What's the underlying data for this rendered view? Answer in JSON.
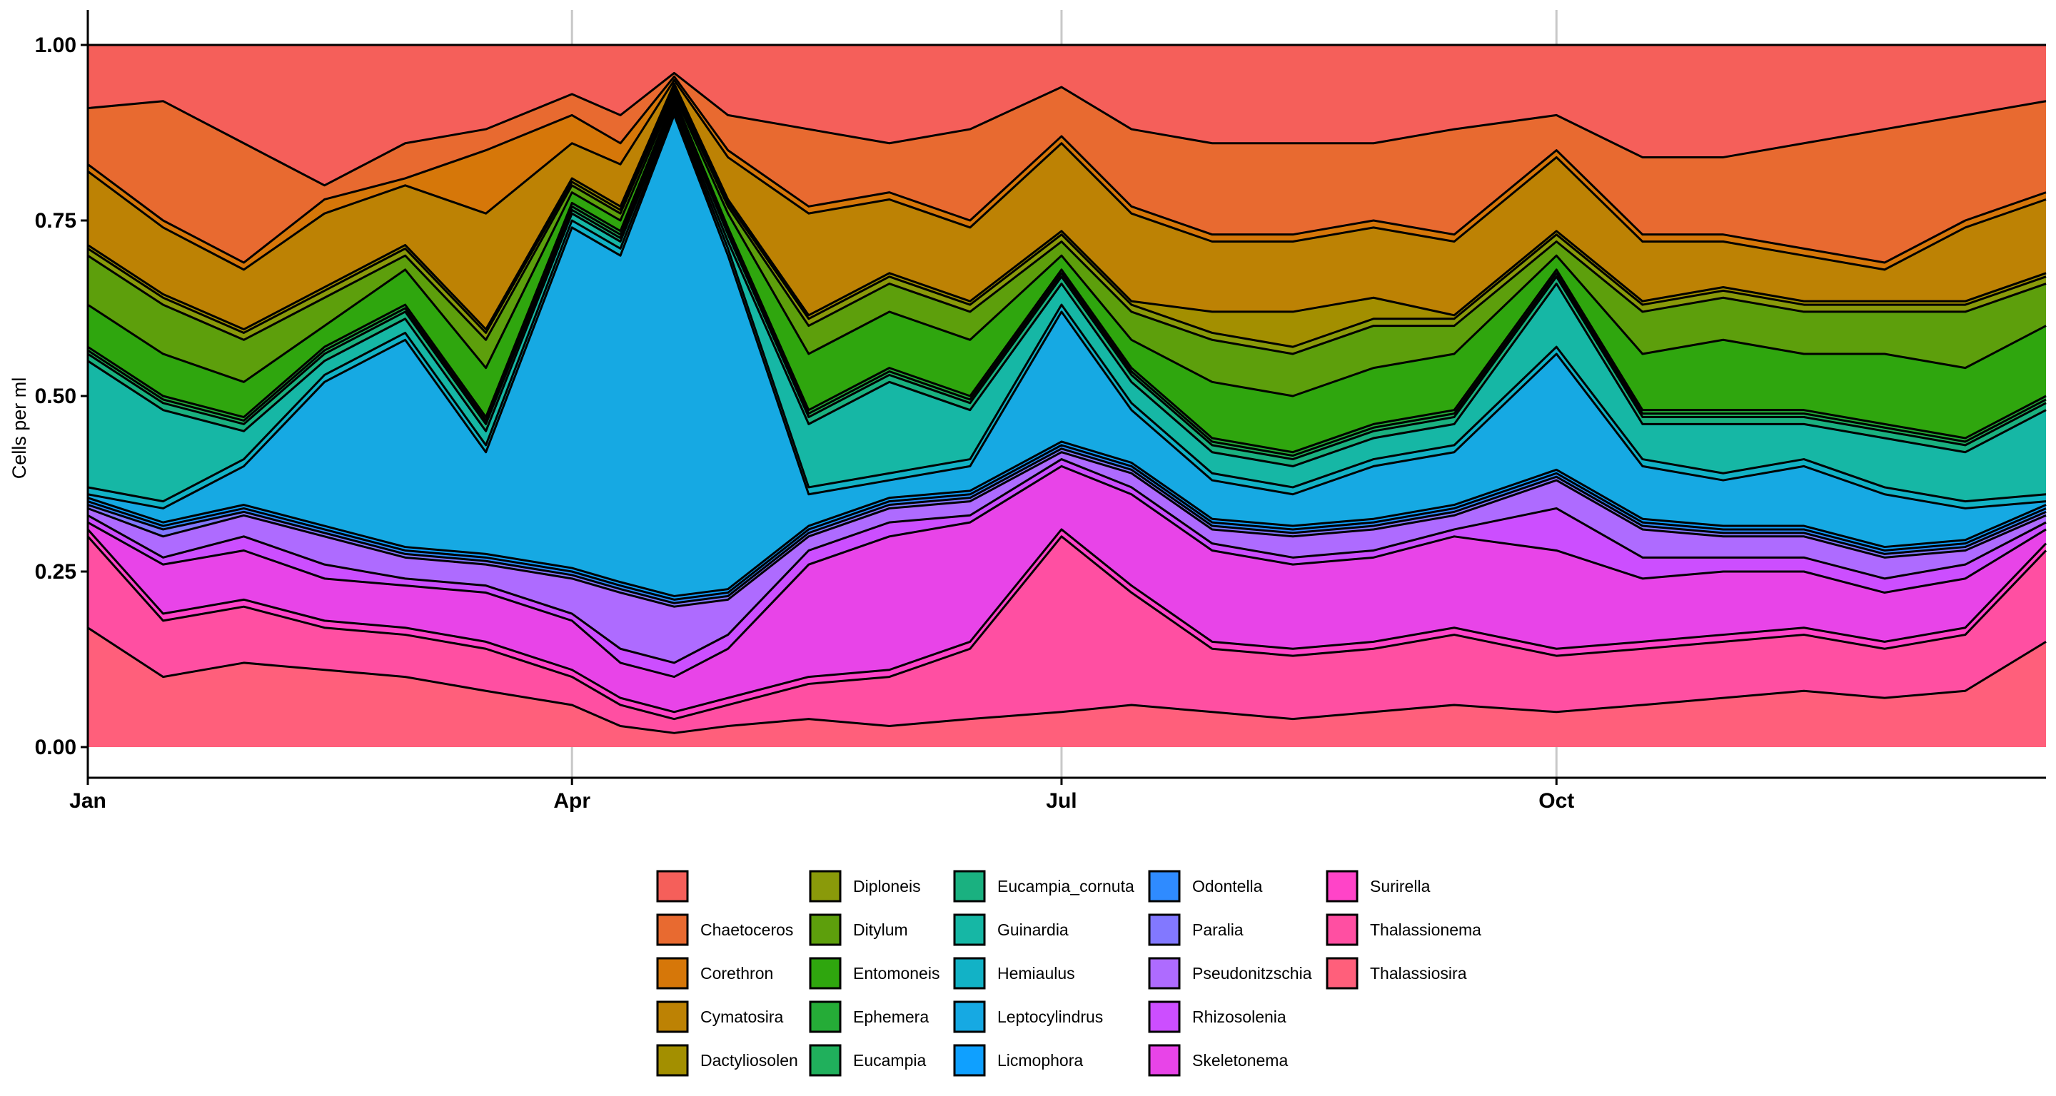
{
  "chart_data": {
    "type": "area",
    "stacked": "fill",
    "title": "",
    "xlabel": "",
    "ylabel": "Cells per ml",
    "ylim": [
      0,
      1
    ],
    "yticks": [
      "0.00",
      "0.25",
      "0.50",
      "0.75",
      "1.00"
    ],
    "x_range_days": [
      1,
      365
    ],
    "xticks": [
      {
        "label": "Jan",
        "day": 1
      },
      {
        "label": "Apr",
        "day": 91
      },
      {
        "label": "Jul",
        "day": 182
      },
      {
        "label": "Oct",
        "day": 274
      }
    ],
    "grid": "vertical-major",
    "legend_position": "bottom",
    "cumulative_boundaries_note": "upper edge of each stacked layer (cumulative proportion), bottom layer first",
    "x_days": [
      1,
      15,
      30,
      45,
      60,
      75,
      91,
      100,
      110,
      120,
      135,
      150,
      165,
      182,
      195,
      210,
      225,
      240,
      255,
      274,
      290,
      305,
      320,
      335,
      350,
      365
    ],
    "series": [
      {
        "name": "Thalassiosira",
        "color": "#FF5F7B",
        "cum": [
          0.17,
          0.1,
          0.12,
          0.11,
          0.1,
          0.08,
          0.06,
          0.03,
          0.02,
          0.03,
          0.04,
          0.03,
          0.04,
          0.05,
          0.06,
          0.05,
          0.04,
          0.05,
          0.06,
          0.05,
          0.06,
          0.07,
          0.08,
          0.07,
          0.08,
          0.15
        ]
      },
      {
        "name": "Thalassionema",
        "color": "#FF4FA2",
        "cum": [
          0.3,
          0.18,
          0.2,
          0.17,
          0.16,
          0.14,
          0.1,
          0.06,
          0.04,
          0.06,
          0.09,
          0.1,
          0.14,
          0.3,
          0.22,
          0.14,
          0.13,
          0.14,
          0.16,
          0.13,
          0.14,
          0.15,
          0.16,
          0.14,
          0.16,
          0.28
        ]
      },
      {
        "name": "Surirella",
        "color": "#FF44C8",
        "cum": [
          0.31,
          0.19,
          0.21,
          0.18,
          0.17,
          0.15,
          0.11,
          0.07,
          0.05,
          0.07,
          0.1,
          0.11,
          0.15,
          0.31,
          0.23,
          0.15,
          0.14,
          0.15,
          0.17,
          0.14,
          0.15,
          0.16,
          0.17,
          0.15,
          0.17,
          0.29
        ]
      },
      {
        "name": "Skeletonema",
        "color": "#E844E8",
        "cum": [
          0.32,
          0.26,
          0.28,
          0.24,
          0.23,
          0.22,
          0.18,
          0.12,
          0.1,
          0.14,
          0.26,
          0.3,
          0.32,
          0.4,
          0.36,
          0.28,
          0.26,
          0.27,
          0.3,
          0.28,
          0.24,
          0.25,
          0.25,
          0.22,
          0.24,
          0.31
        ]
      },
      {
        "name": "Rhizosolenia",
        "color": "#CC4EFF",
        "cum": [
          0.33,
          0.27,
          0.3,
          0.26,
          0.24,
          0.23,
          0.19,
          0.14,
          0.12,
          0.16,
          0.28,
          0.32,
          0.33,
          0.41,
          0.37,
          0.29,
          0.27,
          0.28,
          0.31,
          0.34,
          0.27,
          0.27,
          0.27,
          0.24,
          0.26,
          0.32
        ]
      },
      {
        "name": "Pseudonitzschia",
        "color": "#AE6BFF",
        "cum": [
          0.34,
          0.3,
          0.33,
          0.3,
          0.27,
          0.26,
          0.24,
          0.22,
          0.2,
          0.21,
          0.3,
          0.34,
          0.35,
          0.42,
          0.39,
          0.31,
          0.3,
          0.31,
          0.33,
          0.38,
          0.31,
          0.3,
          0.3,
          0.27,
          0.28,
          0.33
        ]
      },
      {
        "name": "Paralia",
        "color": "#8278FF",
        "cum": [
          0.345,
          0.31,
          0.335,
          0.305,
          0.275,
          0.265,
          0.245,
          0.225,
          0.205,
          0.215,
          0.305,
          0.345,
          0.355,
          0.425,
          0.395,
          0.315,
          0.305,
          0.315,
          0.335,
          0.385,
          0.315,
          0.305,
          0.305,
          0.275,
          0.285,
          0.335
        ]
      },
      {
        "name": "Odontella",
        "color": "#2F8BFF",
        "cum": [
          0.35,
          0.315,
          0.34,
          0.31,
          0.28,
          0.27,
          0.25,
          0.23,
          0.21,
          0.22,
          0.31,
          0.35,
          0.36,
          0.43,
          0.4,
          0.32,
          0.31,
          0.32,
          0.34,
          0.39,
          0.32,
          0.31,
          0.31,
          0.28,
          0.29,
          0.34
        ]
      },
      {
        "name": "Licmophora",
        "color": "#0FA0FF",
        "cum": [
          0.355,
          0.32,
          0.345,
          0.315,
          0.285,
          0.275,
          0.255,
          0.235,
          0.215,
          0.225,
          0.315,
          0.355,
          0.365,
          0.435,
          0.405,
          0.325,
          0.315,
          0.325,
          0.345,
          0.395,
          0.325,
          0.315,
          0.315,
          0.285,
          0.295,
          0.345
        ]
      },
      {
        "name": "Leptocylindrus",
        "color": "#16A9E3",
        "cum": [
          0.36,
          0.34,
          0.4,
          0.52,
          0.58,
          0.42,
          0.74,
          0.7,
          0.9,
          0.7,
          0.36,
          0.38,
          0.4,
          0.62,
          0.48,
          0.38,
          0.36,
          0.4,
          0.42,
          0.56,
          0.4,
          0.38,
          0.4,
          0.36,
          0.34,
          0.35
        ]
      },
      {
        "name": "Hemiaulus",
        "color": "#12B2C6",
        "cum": [
          0.37,
          0.35,
          0.41,
          0.53,
          0.59,
          0.43,
          0.75,
          0.71,
          0.905,
          0.71,
          0.37,
          0.39,
          0.41,
          0.63,
          0.49,
          0.39,
          0.37,
          0.41,
          0.43,
          0.57,
          0.41,
          0.39,
          0.41,
          0.37,
          0.35,
          0.36
        ]
      },
      {
        "name": "Guinardia",
        "color": "#16B7A5",
        "cum": [
          0.55,
          0.48,
          0.45,
          0.55,
          0.61,
          0.45,
          0.76,
          0.72,
          0.91,
          0.72,
          0.46,
          0.52,
          0.48,
          0.66,
          0.52,
          0.42,
          0.4,
          0.44,
          0.46,
          0.66,
          0.46,
          0.46,
          0.46,
          0.44,
          0.42,
          0.48
        ]
      },
      {
        "name": "Eucampia_cornuta",
        "color": "#1AB180",
        "cum": [
          0.56,
          0.49,
          0.46,
          0.56,
          0.62,
          0.46,
          0.765,
          0.725,
          0.915,
          0.73,
          0.47,
          0.53,
          0.49,
          0.67,
          0.53,
          0.43,
          0.41,
          0.45,
          0.47,
          0.67,
          0.47,
          0.47,
          0.47,
          0.45,
          0.43,
          0.49
        ]
      },
      {
        "name": "Eucampia",
        "color": "#20B05C",
        "cum": [
          0.565,
          0.495,
          0.465,
          0.565,
          0.625,
          0.465,
          0.77,
          0.73,
          0.92,
          0.735,
          0.475,
          0.535,
          0.495,
          0.675,
          0.535,
          0.435,
          0.415,
          0.455,
          0.475,
          0.675,
          0.475,
          0.475,
          0.475,
          0.455,
          0.435,
          0.495
        ]
      },
      {
        "name": "Ephemera",
        "color": "#25AC37",
        "cum": [
          0.57,
          0.5,
          0.47,
          0.57,
          0.63,
          0.47,
          0.775,
          0.735,
          0.925,
          0.74,
          0.48,
          0.54,
          0.5,
          0.68,
          0.54,
          0.44,
          0.42,
          0.46,
          0.48,
          0.68,
          0.48,
          0.48,
          0.48,
          0.46,
          0.44,
          0.5
        ]
      },
      {
        "name": "Entomoneis",
        "color": "#2FA60E",
        "cum": [
          0.63,
          0.56,
          0.52,
          0.6,
          0.68,
          0.54,
          0.79,
          0.75,
          0.93,
          0.76,
          0.56,
          0.62,
          0.58,
          0.7,
          0.58,
          0.52,
          0.5,
          0.54,
          0.56,
          0.7,
          0.56,
          0.58,
          0.56,
          0.56,
          0.54,
          0.6
        ]
      },
      {
        "name": "Ditylum",
        "color": "#5D9F0C",
        "cum": [
          0.7,
          0.63,
          0.58,
          0.64,
          0.7,
          0.58,
          0.8,
          0.76,
          0.935,
          0.77,
          0.6,
          0.66,
          0.62,
          0.72,
          0.62,
          0.58,
          0.56,
          0.6,
          0.6,
          0.72,
          0.62,
          0.64,
          0.62,
          0.62,
          0.62,
          0.66
        ]
      },
      {
        "name": "Diploneis",
        "color": "#8A9A0A",
        "cum": [
          0.71,
          0.64,
          0.59,
          0.65,
          0.71,
          0.59,
          0.805,
          0.765,
          0.94,
          0.775,
          0.61,
          0.67,
          0.63,
          0.73,
          0.63,
          0.59,
          0.57,
          0.61,
          0.61,
          0.73,
          0.63,
          0.65,
          0.63,
          0.63,
          0.63,
          0.67
        ]
      },
      {
        "name": "Dactyliosolen",
        "color": "#A38F00",
        "cum": [
          0.715,
          0.645,
          0.595,
          0.655,
          0.715,
          0.595,
          0.81,
          0.77,
          0.945,
          0.78,
          0.615,
          0.675,
          0.635,
          0.735,
          0.635,
          0.62,
          0.62,
          0.64,
          0.615,
          0.735,
          0.635,
          0.655,
          0.635,
          0.635,
          0.635,
          0.675
        ]
      },
      {
        "name": "Cymatosira",
        "color": "#BD8204",
        "cum": [
          0.82,
          0.74,
          0.68,
          0.76,
          0.8,
          0.76,
          0.86,
          0.83,
          0.95,
          0.84,
          0.76,
          0.78,
          0.74,
          0.86,
          0.76,
          0.72,
          0.72,
          0.74,
          0.72,
          0.84,
          0.72,
          0.72,
          0.7,
          0.68,
          0.74,
          0.78
        ]
      },
      {
        "name": "Corethron",
        "color": "#D67709",
        "cum": [
          0.83,
          0.75,
          0.69,
          0.78,
          0.81,
          0.85,
          0.9,
          0.86,
          0.955,
          0.85,
          0.77,
          0.79,
          0.75,
          0.87,
          0.77,
          0.73,
          0.73,
          0.75,
          0.73,
          0.85,
          0.73,
          0.73,
          0.71,
          0.69,
          0.75,
          0.79
        ]
      },
      {
        "name": "Chaetoceros",
        "color": "#E86A30",
        "cum": [
          0.91,
          0.92,
          0.86,
          0.8,
          0.86,
          0.88,
          0.93,
          0.9,
          0.96,
          0.9,
          0.88,
          0.86,
          0.88,
          0.94,
          0.88,
          0.86,
          0.86,
          0.86,
          0.88,
          0.9,
          0.84,
          0.84,
          0.86,
          0.88,
          0.9,
          0.92
        ]
      },
      {
        "name": "",
        "color": "#F55F5A",
        "cum": [
          1,
          1,
          1,
          1,
          1,
          1,
          1,
          1,
          1,
          1,
          1,
          1,
          1,
          1,
          1,
          1,
          1,
          1,
          1,
          1,
          1,
          1,
          1,
          1,
          1,
          1
        ]
      }
    ],
    "legend_order": [
      "",
      "Chaetoceros",
      "Corethron",
      "Cymatosira",
      "Dactyliosolen",
      "Diploneis",
      "Ditylum",
      "Entomoneis",
      "Ephemera",
      "Eucampia",
      "Eucampia_cornuta",
      "Guinardia",
      "Hemiaulus",
      "Leptocylindrus",
      "Licmophora",
      "Odontella",
      "Paralia",
      "Pseudonitzschia",
      "Rhizosolenia",
      "Skeletonema",
      "Surirella",
      "Thalassionema",
      "Thalassiosira"
    ]
  }
}
